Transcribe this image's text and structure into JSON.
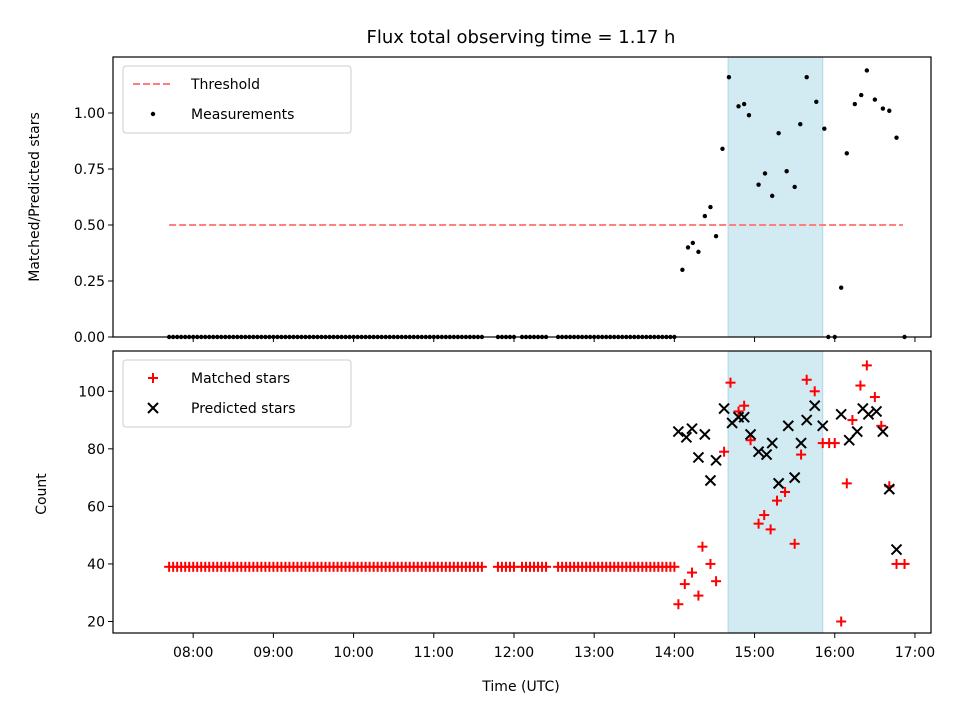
{
  "chart_data": [
    {
      "type": "scatter",
      "title": "Flux total observing time = 1.17 h",
      "ylabel": "Matched/Predicted stars",
      "xlabel": "",
      "ylim": [
        0,
        1.25
      ],
      "yticks": [
        "0.00",
        "0.25",
        "0.50",
        "0.75",
        "1.00"
      ],
      "ytick_values": [
        0,
        0.25,
        0.5,
        0.75,
        1.0
      ],
      "legend_position": "upper-left",
      "threshold": {
        "name": "Threshold",
        "value": 0.5,
        "x_start": 7.7,
        "x_end": 16.85,
        "color": "#ff7f7f"
      },
      "series": [
        {
          "name": "Measurements",
          "color": "#000000",
          "marker": "dot",
          "zero_run": {
            "start": 7.7,
            "end": 14.0,
            "step": 0.05,
            "gaps": [
              [
                11.63,
                11.8
              ],
              [
                12.0,
                12.1
              ],
              [
                12.4,
                12.53
              ]
            ]
          },
          "points": [
            [
              14.1,
              0.3
            ],
            [
              14.17,
              0.4
            ],
            [
              14.23,
              0.42
            ],
            [
              14.3,
              0.38
            ],
            [
              14.38,
              0.54
            ],
            [
              14.45,
              0.58
            ],
            [
              14.52,
              0.45
            ],
            [
              14.6,
              0.84
            ],
            [
              14.68,
              1.16
            ],
            [
              14.8,
              1.03
            ],
            [
              14.87,
              1.04
            ],
            [
              14.93,
              0.99
            ],
            [
              15.05,
              0.68
            ],
            [
              15.13,
              0.73
            ],
            [
              15.22,
              0.63
            ],
            [
              15.3,
              0.91
            ],
            [
              15.4,
              0.74
            ],
            [
              15.5,
              0.67
            ],
            [
              15.57,
              0.95
            ],
            [
              15.65,
              1.16
            ],
            [
              15.77,
              1.05
            ],
            [
              15.87,
              0.93
            ],
            [
              15.92,
              0.0
            ],
            [
              16.0,
              0.0
            ],
            [
              16.08,
              0.22
            ],
            [
              16.15,
              0.82
            ],
            [
              16.25,
              1.04
            ],
            [
              16.33,
              1.08
            ],
            [
              16.4,
              1.19
            ],
            [
              16.5,
              1.06
            ],
            [
              16.6,
              1.02
            ],
            [
              16.68,
              1.01
            ],
            [
              16.77,
              0.89
            ],
            [
              16.87,
              0.0
            ]
          ]
        }
      ],
      "highlight": {
        "x_start": 14.67,
        "x_end": 15.85,
        "color": "#add8e6"
      }
    },
    {
      "type": "scatter",
      "title": "",
      "xlabel": "Time (UTC)",
      "ylabel": "Count",
      "xlim": [
        7.0,
        17.2
      ],
      "xticks": [
        "08:00",
        "09:00",
        "10:00",
        "11:00",
        "12:00",
        "13:00",
        "14:00",
        "15:00",
        "16:00",
        "17:00"
      ],
      "xtick_values": [
        8,
        9,
        10,
        11,
        12,
        13,
        14,
        15,
        16,
        17
      ],
      "ylim": [
        16,
        114
      ],
      "yticks": [
        "20",
        "40",
        "60",
        "80",
        "100"
      ],
      "ytick_values": [
        20,
        40,
        60,
        80,
        100
      ],
      "legend_position": "upper-left",
      "series": [
        {
          "name": "Matched stars",
          "color": "#ff0000",
          "marker": "plus",
          "constant_run": {
            "start": 7.7,
            "end": 14.0,
            "step": 0.05,
            "value": 39,
            "gaps": [
              [
                11.63,
                11.8
              ],
              [
                12.0,
                12.1
              ],
              [
                12.4,
                12.53
              ]
            ]
          },
          "points": [
            [
              14.05,
              26
            ],
            [
              14.13,
              33
            ],
            [
              14.22,
              37
            ],
            [
              14.3,
              29
            ],
            [
              14.35,
              46
            ],
            [
              14.45,
              40
            ],
            [
              14.52,
              34
            ],
            [
              14.62,
              79
            ],
            [
              14.7,
              103
            ],
            [
              14.8,
              93
            ],
            [
              14.87,
              95
            ],
            [
              14.95,
              83
            ],
            [
              15.05,
              54
            ],
            [
              15.12,
              57
            ],
            [
              15.2,
              52
            ],
            [
              15.28,
              62
            ],
            [
              15.38,
              65
            ],
            [
              15.5,
              47
            ],
            [
              15.58,
              78
            ],
            [
              15.65,
              104
            ],
            [
              15.75,
              100
            ],
            [
              15.85,
              82
            ],
            [
              15.93,
              82
            ],
            [
              16.0,
              82
            ],
            [
              16.08,
              20
            ],
            [
              16.15,
              68
            ],
            [
              16.22,
              90
            ],
            [
              16.32,
              102
            ],
            [
              16.4,
              109
            ],
            [
              16.5,
              98
            ],
            [
              16.58,
              88
            ],
            [
              16.68,
              67
            ],
            [
              16.77,
              40
            ],
            [
              16.87,
              40
            ]
          ]
        },
        {
          "name": "Predicted stars",
          "color": "#000000",
          "marker": "x",
          "points": [
            [
              14.05,
              86
            ],
            [
              14.15,
              84
            ],
            [
              14.22,
              87
            ],
            [
              14.3,
              77
            ],
            [
              14.38,
              85
            ],
            [
              14.45,
              69
            ],
            [
              14.52,
              76
            ],
            [
              14.62,
              94
            ],
            [
              14.72,
              89
            ],
            [
              14.8,
              91
            ],
            [
              14.87,
              91
            ],
            [
              14.95,
              85
            ],
            [
              15.05,
              79
            ],
            [
              15.15,
              78
            ],
            [
              15.22,
              82
            ],
            [
              15.3,
              68
            ],
            [
              15.42,
              88
            ],
            [
              15.5,
              70
            ],
            [
              15.58,
              82
            ],
            [
              15.65,
              90
            ],
            [
              15.75,
              95
            ],
            [
              15.85,
              88
            ],
            [
              16.08,
              92
            ],
            [
              16.18,
              83
            ],
            [
              16.28,
              86
            ],
            [
              16.35,
              94
            ],
            [
              16.42,
              92
            ],
            [
              16.52,
              93
            ],
            [
              16.6,
              86
            ],
            [
              16.68,
              66
            ],
            [
              16.77,
              45
            ]
          ]
        }
      ],
      "highlight": {
        "x_start": 14.67,
        "x_end": 15.85,
        "color": "#add8e6"
      }
    }
  ]
}
